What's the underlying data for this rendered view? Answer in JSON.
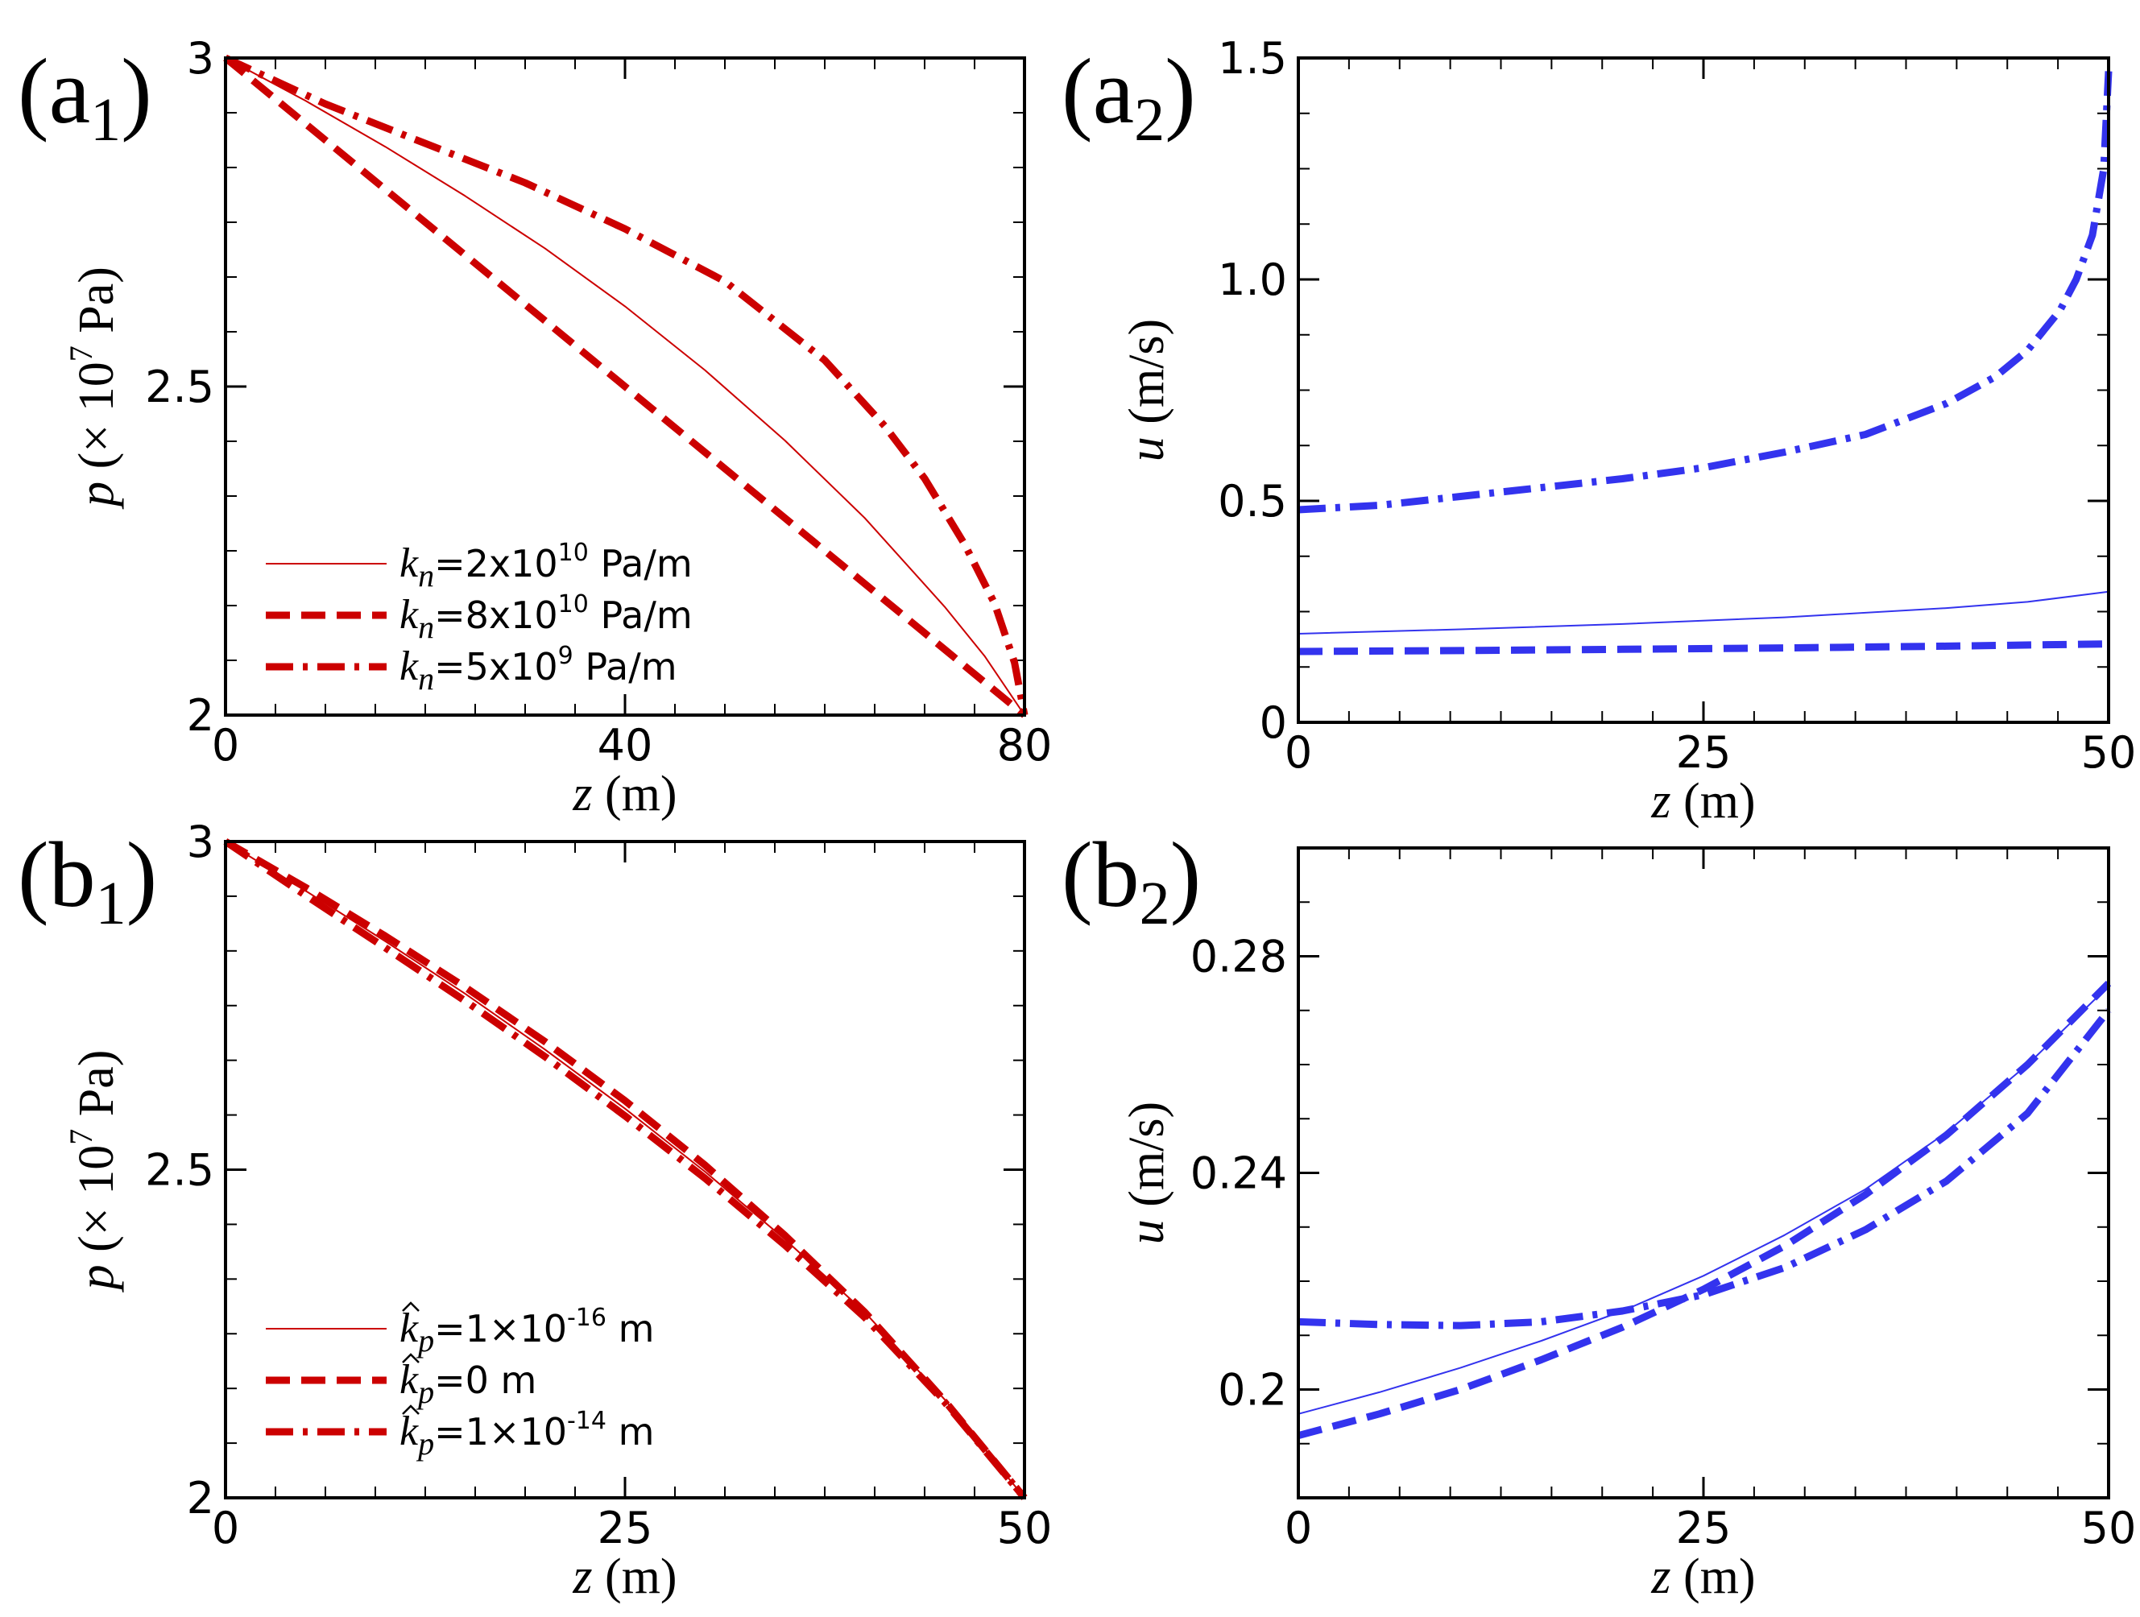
{
  "chart_data": [
    {
      "id": "a1",
      "type": "line",
      "panel_label": "(a",
      "panel_subscript": "1",
      "panel_close": ")",
      "xlabel_var": "z",
      "xlabel_unit": " (m)",
      "ylabel_var": "p",
      "ylabel_unit": " (× 10",
      "ylabel_exp": "7",
      "ylabel_tail": " Pa)",
      "xlim": [
        0,
        80
      ],
      "ylim": [
        2,
        3
      ],
      "xticks": [
        0,
        40,
        80
      ],
      "xtick_labels": [
        "0",
        "40",
        "80"
      ],
      "yticks": [
        2,
        2.5,
        3
      ],
      "ytick_labels": [
        "2",
        "2.5",
        "3"
      ],
      "color": "#cc0000",
      "legend": true,
      "series": [
        {
          "name": "kn=2x10^10 Pa/m",
          "legend_var": "k",
          "legend_sub": "n",
          "legend_eq": "=2x10",
          "legend_exp": "10",
          "legend_unit": " Pa/m",
          "style": "solid",
          "x": [
            0,
            8,
            16,
            24,
            32,
            40,
            48,
            56,
            64,
            72,
            76,
            80
          ],
          "y": [
            3,
            2.935,
            2.865,
            2.79,
            2.71,
            2.622,
            2.525,
            2.418,
            2.3,
            2.165,
            2.09,
            2
          ]
        },
        {
          "name": "kn=8x10^10 Pa/m",
          "legend_var": "k",
          "legend_sub": "n",
          "legend_eq": "=8x10",
          "legend_exp": "10",
          "legend_unit": " Pa/m",
          "style": "dashed",
          "x": [
            0,
            8,
            16,
            24,
            32,
            40,
            48,
            56,
            64,
            72,
            80
          ],
          "y": [
            3,
            2.9,
            2.8,
            2.7,
            2.6,
            2.5,
            2.4,
            2.3,
            2.2,
            2.1,
            2
          ]
        },
        {
          "name": "kn=5x10^9 Pa/m",
          "legend_var": "k",
          "legend_sub": "n",
          "legend_eq": "=5x10",
          "legend_exp": "9",
          "legend_unit": " Pa/m",
          "style": "dashdot",
          "x": [
            0,
            10,
            20,
            30,
            40,
            50,
            60,
            66,
            70,
            74,
            77,
            79,
            80
          ],
          "y": [
            3,
            2.93,
            2.87,
            2.81,
            2.74,
            2.66,
            2.54,
            2.44,
            2.36,
            2.26,
            2.17,
            2.08,
            2
          ]
        }
      ]
    },
    {
      "id": "a2",
      "type": "line",
      "panel_label": "(a",
      "panel_subscript": "2",
      "panel_close": ")",
      "xlabel_var": "z",
      "xlabel_unit": " (m)",
      "ylabel_var": "u",
      "ylabel_unit": " (m/s)",
      "xlim": [
        0,
        50
      ],
      "ylim": [
        0,
        1.5
      ],
      "xticks": [
        0,
        25,
        50
      ],
      "xtick_labels": [
        "0",
        "25",
        "50"
      ],
      "yticks": [
        0,
        0.5,
        1.0,
        1.5
      ],
      "ytick_labels": [
        "0",
        "0.5",
        "1.0",
        "1.5"
      ],
      "color": "#3333ee",
      "legend": false,
      "series": [
        {
          "name": "kn=2x10^10 Pa/m",
          "style": "solid",
          "x": [
            0,
            10,
            20,
            30,
            40,
            45,
            50
          ],
          "y": [
            0.2,
            0.21,
            0.222,
            0.237,
            0.258,
            0.272,
            0.295
          ]
        },
        {
          "name": "kn=8x10^10 Pa/m",
          "style": "dashed",
          "x": [
            0,
            10,
            20,
            30,
            40,
            50
          ],
          "y": [
            0.16,
            0.162,
            0.165,
            0.168,
            0.172,
            0.177
          ]
        },
        {
          "name": "kn=5x10^9 Pa/m",
          "style": "dashdot",
          "x": [
            0,
            5,
            10,
            15,
            20,
            25,
            30,
            35,
            40,
            43,
            45,
            47,
            48,
            49,
            49.7,
            50
          ],
          "y": [
            0.48,
            0.49,
            0.51,
            0.53,
            0.55,
            0.575,
            0.61,
            0.65,
            0.72,
            0.78,
            0.84,
            0.93,
            1.0,
            1.1,
            1.25,
            1.47
          ]
        }
      ]
    },
    {
      "id": "b1",
      "type": "line",
      "panel_label": "(b",
      "panel_subscript": "1",
      "panel_close": ")",
      "xlabel_var": "z",
      "xlabel_unit": " (m)",
      "ylabel_var": "p",
      "ylabel_unit": " (× 10",
      "ylabel_exp": "7",
      "ylabel_tail": " Pa)",
      "xlim": [
        0,
        50
      ],
      "ylim": [
        2,
        3
      ],
      "xticks": [
        0,
        25,
        50
      ],
      "xtick_labels": [
        "0",
        "25",
        "50"
      ],
      "yticks": [
        2,
        2.5,
        3
      ],
      "ytick_labels": [
        "2",
        "2.5",
        "3"
      ],
      "color": "#cc0000",
      "legend": true,
      "series": [
        {
          "name": "kp=1×10^-16 m",
          "legend_var": "k",
          "legend_sub": "p",
          "legend_eq": "=1×10",
          "legend_exp": "-16",
          "legend_unit": " m",
          "style": "solid",
          "x": [
            0,
            5,
            10,
            15,
            20,
            25,
            30,
            35,
            40,
            45,
            50
          ],
          "y": [
            3,
            2.925,
            2.848,
            2.768,
            2.683,
            2.593,
            2.497,
            2.394,
            2.283,
            2.15,
            2
          ]
        },
        {
          "name": "kp=0 m",
          "legend_var": "k",
          "legend_sub": "p",
          "legend_eq": "=0 m",
          "legend_exp": "",
          "legend_unit": "",
          "style": "dashed",
          "x": [
            0,
            5,
            10,
            15,
            20,
            25,
            30,
            35,
            40,
            45,
            50
          ],
          "y": [
            3,
            2.93,
            2.856,
            2.778,
            2.695,
            2.605,
            2.507,
            2.4,
            2.283,
            2.148,
            2
          ]
        },
        {
          "name": "kp=1×10^-14 m",
          "legend_var": "k",
          "legend_sub": "p",
          "legend_eq": "=1×10",
          "legend_exp": "-14",
          "legend_unit": " m",
          "style": "dashdot",
          "x": [
            0,
            5,
            10,
            15,
            20,
            25,
            30,
            35,
            40,
            45,
            50
          ],
          "y": [
            3,
            2.918,
            2.838,
            2.757,
            2.672,
            2.582,
            2.487,
            2.385,
            2.275,
            2.146,
            2
          ]
        }
      ]
    },
    {
      "id": "b2",
      "type": "line",
      "panel_label": "(b",
      "panel_subscript": "2",
      "panel_close": ")",
      "xlabel_var": "z",
      "xlabel_unit": " (m)",
      "ylabel_var": "u",
      "ylabel_unit": " (m/s)",
      "xlim": [
        0,
        50
      ],
      "ylim": [
        0.18,
        0.3
      ],
      "xticks": [
        0,
        25,
        50
      ],
      "xtick_labels": [
        "0",
        "25",
        "50"
      ],
      "yticks": [
        0.2,
        0.24,
        0.28
      ],
      "ytick_labels": [
        "0.2",
        "0.24",
        "0.28"
      ],
      "color": "#3333ee",
      "legend": false,
      "series": [
        {
          "name": "kp=1×10^-16 m",
          "style": "solid",
          "x": [
            0,
            5,
            10,
            15,
            20,
            25,
            30,
            35,
            40,
            45,
            50
          ],
          "y": [
            0.1955,
            0.1995,
            0.204,
            0.209,
            0.2145,
            0.221,
            0.2285,
            0.237,
            0.2475,
            0.26,
            0.2745
          ]
        },
        {
          "name": "kp=0 m",
          "style": "dashed",
          "x": [
            0,
            5,
            10,
            15,
            20,
            25,
            30,
            35,
            40,
            45,
            50
          ],
          "y": [
            0.1915,
            0.1955,
            0.2,
            0.2055,
            0.2115,
            0.2185,
            0.2265,
            0.236,
            0.247,
            0.26,
            0.275
          ]
        },
        {
          "name": "kp=1×10^-14 m",
          "style": "dashdot",
          "x": [
            0,
            5,
            10,
            15,
            20,
            25,
            30,
            35,
            40,
            45,
            50
          ],
          "y": [
            0.2125,
            0.212,
            0.2118,
            0.2125,
            0.2145,
            0.2175,
            0.2225,
            0.2295,
            0.2385,
            0.251,
            0.27
          ]
        }
      ]
    }
  ]
}
